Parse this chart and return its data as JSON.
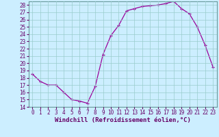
{
  "x": [
    0,
    1,
    2,
    3,
    4,
    5,
    6,
    7,
    8,
    9,
    10,
    11,
    12,
    13,
    14,
    15,
    16,
    17,
    18,
    19,
    20,
    21,
    22,
    23
  ],
  "y": [
    18.5,
    17.5,
    17.0,
    17.0,
    16.0,
    15.0,
    14.8,
    14.5,
    16.8,
    21.2,
    23.8,
    25.2,
    27.2,
    27.5,
    27.8,
    27.9,
    28.0,
    28.2,
    28.5,
    27.5,
    26.8,
    25.0,
    22.5,
    19.5
  ],
  "line_color": "#990099",
  "marker": "+",
  "bg_color": "#cceeff",
  "grid_color": "#99cccc",
  "xlabel": "Windchill (Refroidissement éolien,°C)",
  "ylim": [
    14,
    28.5
  ],
  "xlim": [
    -0.5,
    23.5
  ],
  "yticks": [
    14,
    15,
    16,
    17,
    18,
    19,
    20,
    21,
    22,
    23,
    24,
    25,
    26,
    27,
    28
  ],
  "xticks": [
    0,
    1,
    2,
    3,
    4,
    5,
    6,
    7,
    8,
    9,
    10,
    11,
    12,
    13,
    14,
    15,
    16,
    17,
    18,
    19,
    20,
    21,
    22,
    23
  ],
  "tick_label_fontsize": 5.5,
  "xlabel_fontsize": 6.5,
  "line_color_dark": "#660066",
  "spine_color": "#669999"
}
